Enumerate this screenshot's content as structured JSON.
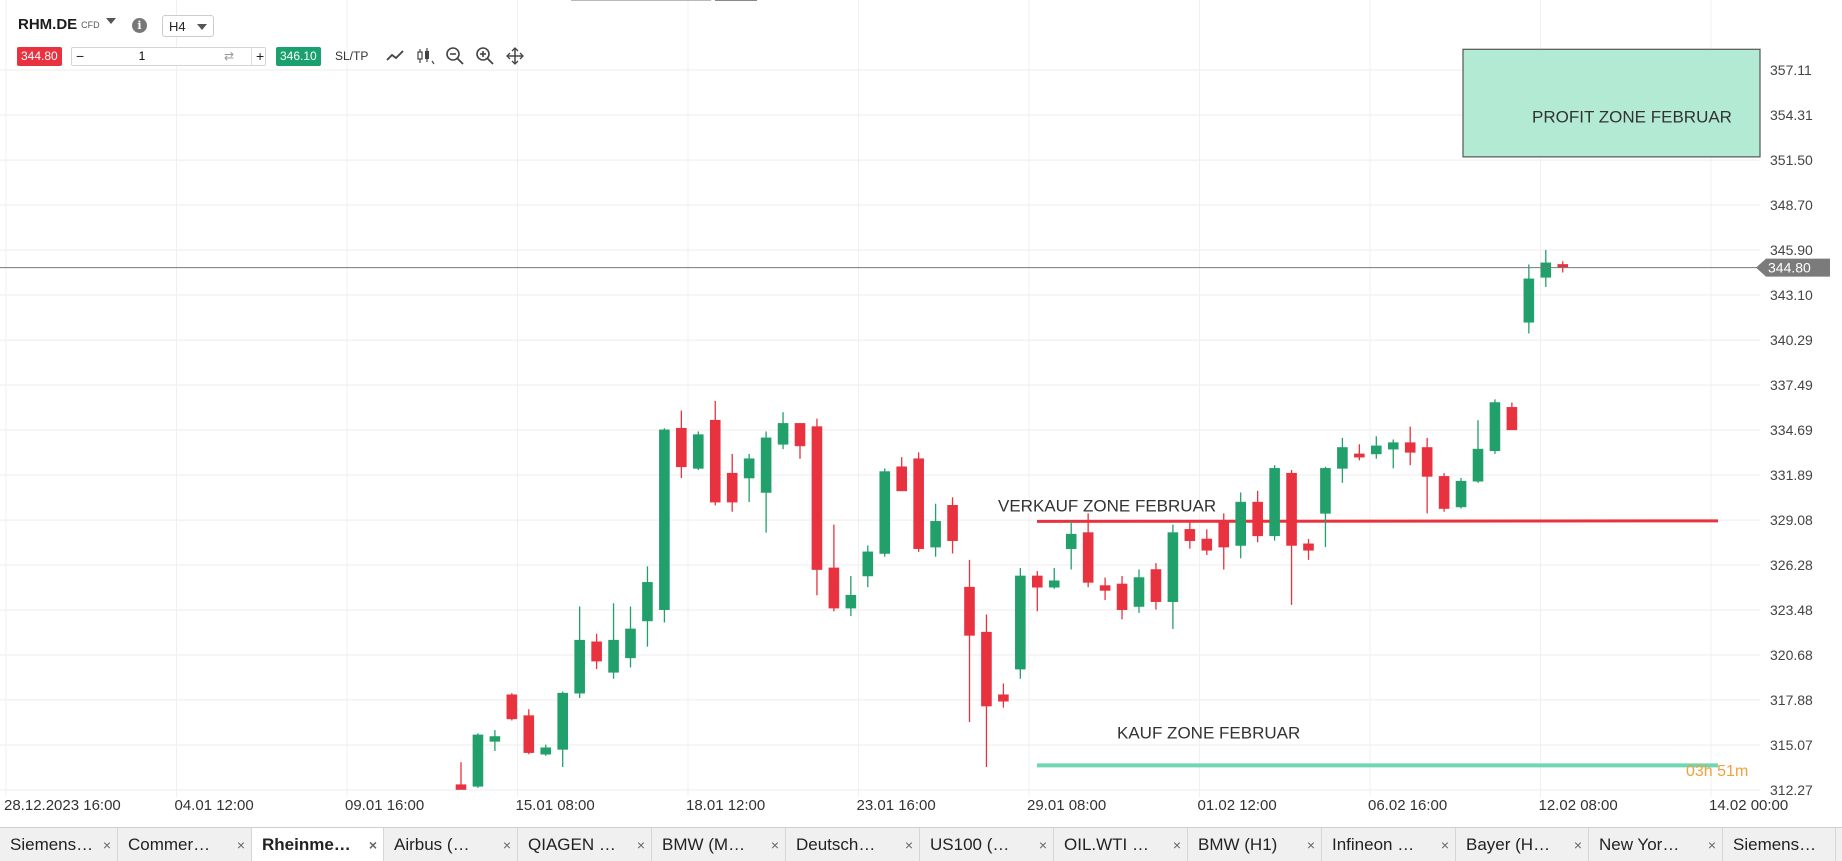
{
  "toolbar": {
    "symbol": "RHM.DE",
    "symbol_type": "CFD",
    "timeframe": "H4",
    "sell_price": "344.80",
    "quantity": "1",
    "buy_price": "346.10",
    "sltp_label": "SL/TP",
    "minus": "−",
    "plus": "+",
    "info": "i",
    "swap": "⇄",
    "icons": [
      "line-chart-icon",
      "candlestick-icon",
      "zoom-out-icon",
      "zoom-in-icon",
      "crosshair-icon"
    ]
  },
  "chart_data": {
    "type": "candlestick",
    "symbol": "RHM.DE",
    "timeframe": "H4",
    "y_ticks": [
      "357.11",
      "354.31",
      "351.50",
      "348.70",
      "345.90",
      "343.10",
      "340.29",
      "337.49",
      "334.69",
      "331.89",
      "329.08",
      "326.28",
      "323.48",
      "320.68",
      "317.88",
      "315.07",
      "312.27"
    ],
    "ylim": [
      312.27,
      357.11
    ],
    "x_ticks": [
      "28.12.2023 16:00",
      "04.01 12:00",
      "09.01 16:00",
      "15.01 08:00",
      "18.01 12:00",
      "23.01 16:00",
      "29.01 08:00",
      "01.02 12:00",
      "06.02 16:00",
      "12.02 08:00",
      "14.02 00:00"
    ],
    "current_price": "344.80",
    "countdown": "03h 51m",
    "candles": [
      [
        312.6,
        312.3,
        314.0,
        312.3
      ],
      [
        312.5,
        315.7,
        315.8,
        312.4
      ],
      [
        315.3,
        315.6,
        316.0,
        314.7
      ],
      [
        318.2,
        316.7,
        318.3,
        316.6
      ],
      [
        316.9,
        314.6,
        317.3,
        314.5
      ],
      [
        314.5,
        314.9,
        315.1,
        314.4
      ],
      [
        314.8,
        318.3,
        318.4,
        313.7
      ],
      [
        318.3,
        321.6,
        323.7,
        318.0
      ],
      [
        321.5,
        320.3,
        322.0,
        319.8
      ],
      [
        319.6,
        321.6,
        323.9,
        319.2
      ],
      [
        320.5,
        322.3,
        323.7,
        319.9
      ],
      [
        322.8,
        325.2,
        326.2,
        321.2
      ],
      [
        323.5,
        334.7,
        334.8,
        322.7
      ],
      [
        334.8,
        332.4,
        335.9,
        331.7
      ],
      [
        332.3,
        334.4,
        334.6,
        332.2
      ],
      [
        335.3,
        330.2,
        336.5,
        330.0
      ],
      [
        332.0,
        330.2,
        333.2,
        329.6
      ],
      [
        331.7,
        332.9,
        333.2,
        330.2
      ],
      [
        330.8,
        334.2,
        334.6,
        328.3
      ],
      [
        333.8,
        335.1,
        335.8,
        333.5
      ],
      [
        335.1,
        333.7,
        335.1,
        332.9
      ],
      [
        334.9,
        326.0,
        335.4,
        324.4
      ],
      [
        326.1,
        323.6,
        328.8,
        323.4
      ],
      [
        323.6,
        324.4,
        325.6,
        323.1
      ],
      [
        325.6,
        327.1,
        327.5,
        324.9
      ],
      [
        327.0,
        332.1,
        332.3,
        326.8
      ],
      [
        332.4,
        330.9,
        333.0,
        330.9
      ],
      [
        332.9,
        327.3,
        333.3,
        327.1
      ],
      [
        327.4,
        329.0,
        330.1,
        326.8
      ],
      [
        330.0,
        327.8,
        330.5,
        327.0
      ],
      [
        324.9,
        321.9,
        326.6,
        316.5
      ],
      [
        322.1,
        317.5,
        323.2,
        313.7
      ],
      [
        318.2,
        317.8,
        318.9,
        317.4
      ],
      [
        319.8,
        325.6,
        326.1,
        319.2
      ],
      [
        325.6,
        324.9,
        325.9,
        323.4
      ],
      [
        324.9,
        325.3,
        326.1,
        324.8
      ],
      [
        327.3,
        328.2,
        329.0,
        326.0
      ],
      [
        328.3,
        325.2,
        329.5,
        324.9
      ],
      [
        325.0,
        324.7,
        325.5,
        324.1
      ],
      [
        325.1,
        323.5,
        325.6,
        322.9
      ],
      [
        323.7,
        325.5,
        326.0,
        323.3
      ],
      [
        326.0,
        324.0,
        326.4,
        323.5
      ],
      [
        324.0,
        328.3,
        328.8,
        322.3
      ],
      [
        328.5,
        327.8,
        329.0,
        327.3
      ],
      [
        327.9,
        327.2,
        328.5,
        326.9
      ],
      [
        329.0,
        327.4,
        329.5,
        326.0
      ],
      [
        327.5,
        330.2,
        330.8,
        326.7
      ],
      [
        330.2,
        328.1,
        330.9,
        327.7
      ],
      [
        328.1,
        332.3,
        332.5,
        327.8
      ],
      [
        332.0,
        327.5,
        332.2,
        323.8
      ],
      [
        327.6,
        327.2,
        327.9,
        326.6
      ],
      [
        329.5,
        332.3,
        332.4,
        327.4
      ],
      [
        332.3,
        333.6,
        334.2,
        331.4
      ],
      [
        333.2,
        333.0,
        333.8,
        332.8
      ],
      [
        333.2,
        333.7,
        334.3,
        332.9
      ],
      [
        333.5,
        333.9,
        334.1,
        332.3
      ],
      [
        333.9,
        333.3,
        334.9,
        332.5
      ],
      [
        333.6,
        331.8,
        334.2,
        329.5
      ],
      [
        331.8,
        329.8,
        332.0,
        329.6
      ],
      [
        329.9,
        331.5,
        331.7,
        329.8
      ],
      [
        331.5,
        333.5,
        335.3,
        331.4
      ],
      [
        333.4,
        336.4,
        336.6,
        333.2
      ],
      [
        336.1,
        334.7,
        336.4,
        334.7
      ],
      [
        341.4,
        344.1,
        345.0,
        340.7
      ],
      [
        344.2,
        345.1,
        345.9,
        343.6
      ],
      [
        345.0,
        344.8,
        345.2,
        344.5
      ]
    ]
  },
  "annotations": {
    "profit_zone": "PROFIT ZONE FEBRUAR",
    "sell_zone": "VERKAUF ZONE FEBRUAR",
    "buy_zone": "KAUF ZONE FEBRUAR",
    "sell_zone_price": 329.0,
    "buy_zone_price": 313.8,
    "profit_zone_top": 358.4,
    "profit_zone_bottom": 351.7,
    "sell_color": "#e8323f",
    "buy_color": "#6fd6b3",
    "profit_fill": "#b3ead4",
    "up_color": "#22a06b",
    "down_color": "#e8323f"
  },
  "tabs": [
    {
      "label": "Siemens…",
      "close": "×"
    },
    {
      "label": "Commer…",
      "close": "×"
    },
    {
      "label": "Rheinme…",
      "close": "×",
      "active": true
    },
    {
      "label": "Airbus (…",
      "close": "×"
    },
    {
      "label": "QIAGEN …",
      "close": "×"
    },
    {
      "label": "BMW (M…",
      "close": "×"
    },
    {
      "label": "Deutsch…",
      "close": "×"
    },
    {
      "label": "US100 (…",
      "close": "×"
    },
    {
      "label": "OIL.WTI …",
      "close": "×"
    },
    {
      "label": "BMW (H1)",
      "close": "×"
    },
    {
      "label": "Infineon …",
      "close": "×"
    },
    {
      "label": "Bayer (H…",
      "close": "×"
    },
    {
      "label": "New Yor…",
      "close": "×"
    },
    {
      "label": "Siemens…",
      "close": ""
    }
  ]
}
